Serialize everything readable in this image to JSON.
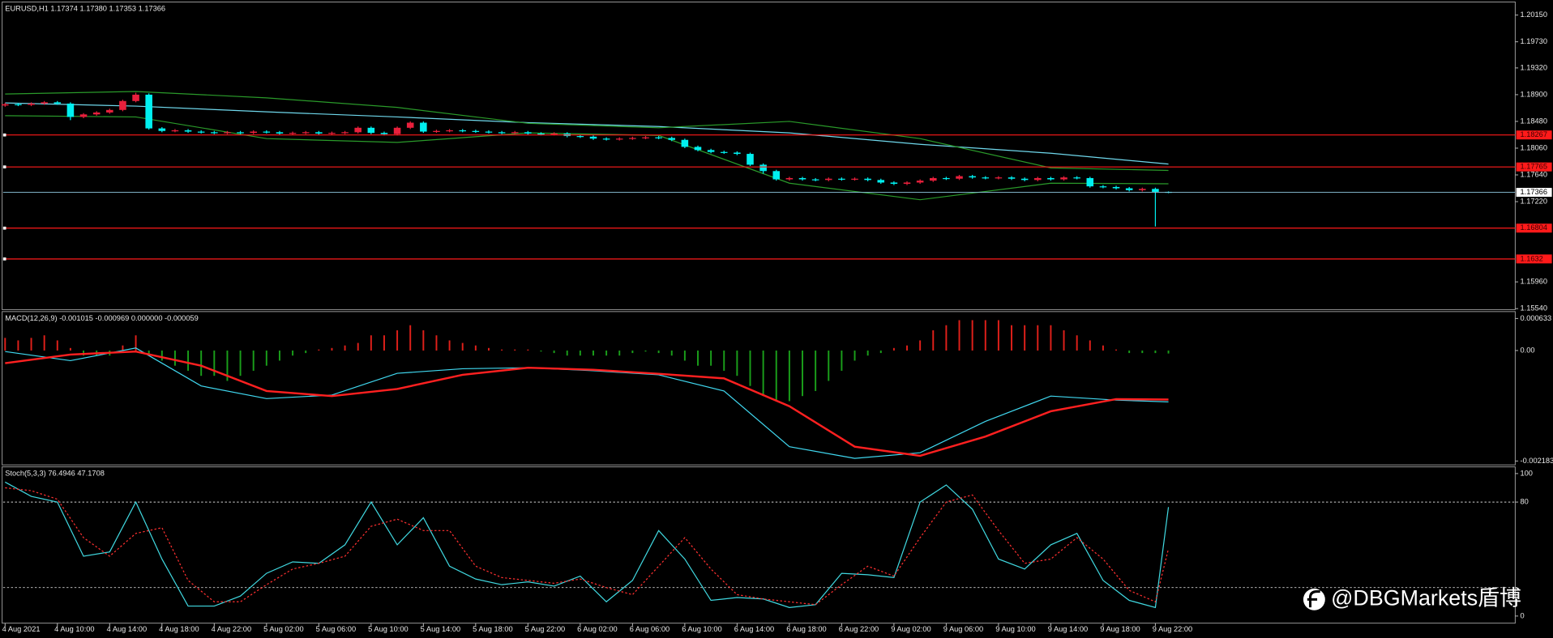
{
  "watermark": "@DBGMarkets盾博",
  "chart_data": [
    {
      "type": "candlestick",
      "title": "EURUSD,H1  1.17374 1.17380 1.17353 1.17366",
      "categories": [
        "4 Aug 2021",
        null,
        null,
        null,
        "4 Aug 10:00",
        null,
        null,
        null,
        "4 Aug 14:00",
        null,
        null,
        null,
        "4 Aug 18:00",
        null,
        null,
        null,
        "4 Aug 22:00",
        null,
        null,
        null,
        "5 Aug 02:00",
        null,
        null,
        null,
        "5 Aug 06:00",
        null,
        null,
        null,
        "5 Aug 10:00",
        null,
        null,
        null,
        "5 Aug 14:00",
        null,
        null,
        null,
        "5 Aug 18:00",
        null,
        null,
        null,
        "5 Aug 22:00",
        null,
        null,
        null,
        "6 Aug 02:00",
        null,
        null,
        null,
        "6 Aug 06:00",
        null,
        null,
        null,
        "6 Aug 10:00",
        null,
        null,
        null,
        "6 Aug 14:00",
        null,
        null,
        null,
        "6 Aug 18:00",
        null,
        null,
        null,
        "6 Aug 22:00",
        null,
        null,
        null,
        "9 Aug 02:00",
        null,
        null,
        null,
        "9 Aug 06:00",
        null,
        null,
        null,
        "9 Aug 10:00",
        null,
        null,
        null,
        "9 Aug 14:00",
        null,
        null,
        null,
        "9 Aug 18:00",
        null,
        null,
        null,
        "9 Aug 22:00",
        null
      ],
      "open": [
        1.1873,
        1.1875,
        1.1874,
        1.1876,
        1.1878,
        1.1876,
        1.1855,
        1.1859,
        1.1862,
        1.1866,
        1.188,
        1.189,
        1.1837,
        1.1833,
        1.1834,
        1.1832,
        1.1831,
        1.183,
        1.1831,
        1.183,
        1.1832,
        1.1831,
        1.1829,
        1.183,
        1.1831,
        1.1829,
        1.183,
        1.1831,
        1.1838,
        1.183,
        1.1828,
        1.1838,
        1.1846,
        1.1832,
        1.1833,
        1.1834,
        1.1833,
        1.1832,
        1.1831,
        1.183,
        1.1831,
        1.1829,
        1.1828,
        1.1829,
        1.1825,
        1.1824,
        1.1821,
        1.182,
        1.1821,
        1.1822,
        1.1823,
        1.1822,
        1.1819,
        1.1808,
        1.1803,
        1.18,
        1.1799,
        1.1797,
        1.178,
        1.177,
        1.1757,
        1.1759,
        1.1757,
        1.1756,
        1.1758,
        1.1757,
        1.1758,
        1.1756,
        1.1752,
        1.175,
        1.1752,
        1.1755,
        1.1759,
        1.1758,
        1.1762,
        1.176,
        1.1759,
        1.176,
        1.1758,
        1.1756,
        1.1759,
        1.1757,
        1.176,
        1.1759,
        1.1746,
        1.1745,
        1.1743,
        1.174,
        1.1742,
        1.17374
      ],
      "high": [
        1.1877,
        1.1877,
        1.1878,
        1.188,
        1.188,
        1.1878,
        1.1861,
        1.1864,
        1.1868,
        1.1882,
        1.1893,
        1.1892,
        1.1839,
        1.1836,
        1.1836,
        1.1834,
        1.1833,
        1.1833,
        1.1833,
        1.1834,
        1.1834,
        1.1833,
        1.1832,
        1.1833,
        1.1833,
        1.1832,
        1.1833,
        1.184,
        1.184,
        1.1832,
        1.184,
        1.1848,
        1.1848,
        1.1835,
        1.1836,
        1.1836,
        1.1835,
        1.1834,
        1.1833,
        1.1833,
        1.1833,
        1.1831,
        1.1831,
        1.1831,
        1.1827,
        1.1826,
        1.1823,
        1.1823,
        1.1824,
        1.1825,
        1.1825,
        1.1824,
        1.1821,
        1.181,
        1.1805,
        1.1802,
        1.1801,
        1.1799,
        1.1782,
        1.1772,
        1.1761,
        1.1761,
        1.1759,
        1.176,
        1.176,
        1.176,
        1.176,
        1.1758,
        1.1754,
        1.1754,
        1.1757,
        1.1761,
        1.1761,
        1.1764,
        1.1764,
        1.1762,
        1.1762,
        1.1762,
        1.176,
        1.1761,
        1.1761,
        1.1762,
        1.1762,
        1.1761,
        1.1748,
        1.1747,
        1.1745,
        1.1744,
        1.1744,
        1.1738
      ],
      "low": [
        1.1871,
        1.1872,
        1.1872,
        1.1874,
        1.1874,
        1.185,
        1.1853,
        1.1857,
        1.186,
        1.1864,
        1.1878,
        1.1835,
        1.1831,
        1.1831,
        1.183,
        1.1829,
        1.1828,
        1.1828,
        1.1828,
        1.1828,
        1.1829,
        1.1827,
        1.1827,
        1.1828,
        1.1827,
        1.1827,
        1.1828,
        1.1829,
        1.1828,
        1.1826,
        1.1826,
        1.1836,
        1.183,
        1.183,
        1.1831,
        1.1831,
        1.183,
        1.1829,
        1.1828,
        1.1828,
        1.1827,
        1.1826,
        1.1826,
        1.1823,
        1.1822,
        1.1819,
        1.1818,
        1.1818,
        1.1819,
        1.182,
        1.182,
        1.1817,
        1.1806,
        1.1801,
        1.1798,
        1.1797,
        1.1795,
        1.1778,
        1.1766,
        1.1755,
        1.1755,
        1.1755,
        1.1754,
        1.1754,
        1.1755,
        1.1755,
        1.1754,
        1.175,
        1.1748,
        1.1748,
        1.175,
        1.1753,
        1.1756,
        1.1756,
        1.1758,
        1.1757,
        1.1757,
        1.1756,
        1.1754,
        1.1754,
        1.1755,
        1.1755,
        1.1757,
        1.1744,
        1.1743,
        1.1741,
        1.1738,
        1.1738,
        1.1683,
        1.17353
      ],
      "close": [
        1.1875,
        1.1874,
        1.1876,
        1.1878,
        1.1876,
        1.1855,
        1.1859,
        1.1862,
        1.1866,
        1.188,
        1.189,
        1.1837,
        1.1833,
        1.1834,
        1.1832,
        1.1831,
        1.183,
        1.1831,
        1.183,
        1.1832,
        1.1831,
        1.1829,
        1.183,
        1.1831,
        1.1829,
        1.183,
        1.1831,
        1.1838,
        1.183,
        1.1828,
        1.1838,
        1.1846,
        1.1832,
        1.1833,
        1.1834,
        1.1833,
        1.1832,
        1.1831,
        1.183,
        1.1831,
        1.1829,
        1.1828,
        1.1829,
        1.1825,
        1.1824,
        1.1821,
        1.182,
        1.1821,
        1.1822,
        1.1823,
        1.1822,
        1.1819,
        1.1808,
        1.1803,
        1.18,
        1.1799,
        1.1797,
        1.178,
        1.177,
        1.1757,
        1.1759,
        1.1757,
        1.1756,
        1.1758,
        1.1757,
        1.1758,
        1.1756,
        1.1752,
        1.175,
        1.1752,
        1.1755,
        1.1759,
        1.1758,
        1.1762,
        1.176,
        1.1759,
        1.176,
        1.1758,
        1.1756,
        1.1759,
        1.1757,
        1.176,
        1.1759,
        1.1746,
        1.1745,
        1.1743,
        1.174,
        1.1742,
        1.17374,
        1.17366
      ],
      "up_color": "#e8203c",
      "down_color": "#00f0f0",
      "series": [
        {
          "color": "#6fd8ec",
          "x": [
            0,
            10,
            20,
            30,
            40,
            50,
            60,
            70,
            80,
            89
          ],
          "values": [
            1.1877,
            1.1872,
            1.1863,
            1.1855,
            1.1846,
            1.184,
            1.183,
            1.1812,
            1.1798,
            1.1781
          ]
        },
        {
          "color": "#2a9a2a",
          "x": [
            0,
            10,
            20,
            30,
            40,
            50,
            60,
            70,
            80,
            89
          ],
          "values": [
            1.1891,
            1.1895,
            1.1885,
            1.187,
            1.1845,
            1.1838,
            1.1848,
            1.1821,
            1.1775,
            1.1771
          ]
        },
        {
          "color": "#2a9a2a",
          "x": [
            0,
            10,
            20,
            30,
            40,
            50,
            60,
            70,
            80,
            89
          ],
          "values": [
            1.1857,
            1.1855,
            1.1821,
            1.1815,
            1.183,
            1.1826,
            1.1751,
            1.1725,
            1.1751,
            1.175
          ]
        }
      ],
      "hlines": [
        1.18267,
        1.17765,
        1.16804,
        1.1632
      ],
      "hline_color": "#ff1a1a",
      "last_color": "#8fc8e0",
      "ylim": [
        1.1554,
        1.2034
      ],
      "yticks": [
        {
          "value": 1.2015,
          "label": "1.20150"
        },
        {
          "value": 1.1973,
          "label": "1.19730"
        },
        {
          "value": 1.1932,
          "label": "1.19320"
        },
        {
          "value": 1.189,
          "label": "1.18900"
        },
        {
          "value": 1.1848,
          "label": "1.18480"
        },
        {
          "value": 1.1806,
          "label": "1.18060"
        },
        {
          "value": 1.1764,
          "label": "1.17640"
        },
        {
          "value": 1.1722,
          "label": "1.17220"
        },
        {
          "value": 1.1596,
          "label": "1.15960"
        },
        {
          "value": 1.1554,
          "label": "1.15540"
        }
      ]
    },
    {
      "type": "macd",
      "title": "MACD(12,26,9) -0.001015 -0.000969 0.000000 -0.000059",
      "histogram": {
        "pos_color": "#e0201a",
        "neg_color": "#1a9e1a",
        "values": [
          0.00025,
          0.0002,
          0.00025,
          0.0003,
          0.0002,
          5e-05,
          -0.0001,
          -0.0001,
          -0.0001,
          0.0001,
          0.0003,
          -0.0001,
          -0.0002,
          -0.0003,
          -0.0004,
          -0.0005,
          -0.0005,
          -0.0006,
          -0.0005,
          -0.0004,
          -0.0003,
          -0.0002,
          -0.0001,
          -5e-05,
          2e-05,
          5e-05,
          0.0001,
          0.00015,
          0.0003,
          0.0003,
          0.0004,
          0.0005,
          0.0004,
          0.0003,
          0.0002,
          0.00015,
          0.0001,
          5e-05,
          2e-05,
          2e-05,
          2e-05,
          -2e-05,
          -5e-05,
          -0.0001,
          -0.0001,
          -0.0001,
          -0.0001,
          -0.0001,
          -5e-05,
          -2e-05,
          -5e-05,
          -0.0001,
          -0.0002,
          -0.0003,
          -0.0003,
          -0.0004,
          -0.0005,
          -0.0007,
          -0.0009,
          -0.001,
          -0.001,
          -0.0009,
          -0.0008,
          -0.0006,
          -0.0004,
          -0.0002,
          -0.0001,
          -5e-05,
          5e-05,
          0.0001,
          0.0002,
          0.0004,
          0.0005,
          0.0006,
          0.0006,
          0.0006,
          0.0006,
          0.0005,
          0.0005,
          0.0005,
          0.0005,
          0.0004,
          0.0003,
          0.0002,
          0.0001,
          2e-05,
          -5e-05,
          -5e-05,
          -5e-05,
          -5.9e-05
        ]
      },
      "series": [
        {
          "color": "#40d8f0",
          "width": 1,
          "x": [
            0,
            5,
            10,
            15,
            20,
            25,
            30,
            35,
            40,
            45,
            50,
            55,
            60,
            65,
            70,
            75,
            80,
            85,
            89
          ],
          "values": [
            -2e-05,
            -0.0002,
            5e-05,
            -0.0007,
            -0.00095,
            -0.00088,
            -0.00045,
            -0.00036,
            -0.00034,
            -0.0004,
            -0.00048,
            -0.0008,
            -0.0019,
            -0.00213,
            -0.00202,
            -0.0014,
            -0.0009,
            -0.00098,
            -0.001015
          ]
        },
        {
          "color": "#ff2020",
          "width": 2,
          "x": [
            0,
            5,
            10,
            15,
            20,
            25,
            30,
            35,
            40,
            45,
            50,
            55,
            60,
            65,
            70,
            75,
            80,
            85,
            89
          ],
          "values": [
            -0.00025,
            -8e-05,
            -2e-05,
            -0.0003,
            -0.0008,
            -0.0009,
            -0.00076,
            -0.00048,
            -0.00034,
            -0.00038,
            -0.00046,
            -0.00055,
            -0.0011,
            -0.0019,
            -0.00208,
            -0.0017,
            -0.0012,
            -0.00096,
            -0.000969
          ]
        }
      ],
      "ylim": [
        -0.00226,
        0.00075
      ],
      "yticks": [
        0.000633,
        {
          "value": 0,
          "label": "0.00"
        },
        -0.002183
      ]
    },
    {
      "type": "line",
      "title": "Stoch(5,3,3) 76.4946 47.1708",
      "series": [
        {
          "color": "#40d8e0",
          "x": [
            0,
            2,
            4,
            6,
            8,
            10,
            12,
            14,
            16,
            18,
            20,
            22,
            24,
            26,
            28,
            30,
            32,
            34,
            36,
            38,
            40,
            42,
            44,
            46,
            48,
            50,
            52,
            54,
            56,
            58,
            60,
            62,
            64,
            66,
            68,
            70,
            72,
            74,
            76,
            78,
            80,
            82,
            84,
            86,
            88,
            89
          ],
          "values": [
            94,
            84,
            80,
            42,
            45,
            80,
            40,
            7,
            7,
            14,
            30,
            38,
            37,
            50,
            80,
            50,
            69,
            35,
            26,
            22,
            24,
            21,
            28,
            10,
            25,
            60,
            40,
            11,
            13,
            12,
            6,
            8,
            30,
            29,
            27,
            80,
            92,
            75,
            40,
            33,
            50,
            58,
            25,
            11,
            6,
            76.4946
          ]
        },
        {
          "color": "#ff3030",
          "dotted": true,
          "x": [
            0,
            2,
            4,
            6,
            8,
            10,
            12,
            14,
            16,
            18,
            20,
            22,
            24,
            26,
            28,
            30,
            32,
            34,
            36,
            38,
            40,
            42,
            44,
            46,
            48,
            50,
            52,
            54,
            56,
            58,
            60,
            62,
            64,
            66,
            68,
            70,
            72,
            74,
            76,
            78,
            80,
            82,
            84,
            86,
            88,
            89
          ],
          "values": [
            90,
            88,
            82,
            55,
            42,
            58,
            62,
            25,
            10,
            10,
            22,
            33,
            37,
            42,
            63,
            68,
            60,
            60,
            35,
            27,
            25,
            23,
            26,
            20,
            15,
            35,
            55,
            33,
            15,
            12,
            10,
            8,
            22,
            35,
            28,
            55,
            80,
            85,
            60,
            37,
            40,
            55,
            40,
            18,
            10,
            47.1708
          ]
        }
      ],
      "levels": [
        80,
        20
      ],
      "ylim": [
        -5,
        104
      ],
      "yticks": [
        100,
        80,
        0
      ]
    }
  ]
}
